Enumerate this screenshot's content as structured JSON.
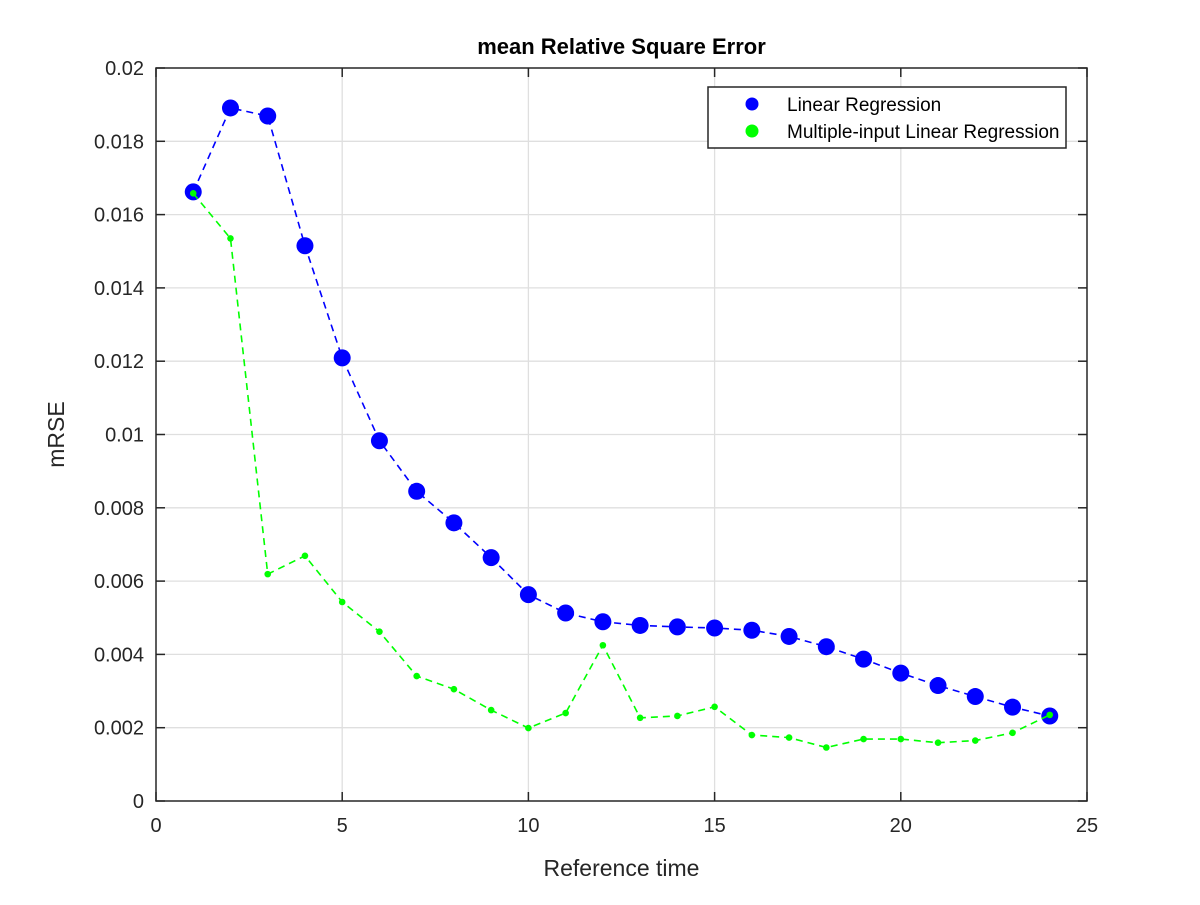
{
  "chart_data": {
    "type": "line",
    "title": "mean Relative Square Error",
    "xlabel": "Reference time",
    "ylabel": "mRSE",
    "xlim": [
      0,
      25
    ],
    "ylim": [
      0,
      0.02
    ],
    "xticks": [
      0,
      5,
      10,
      15,
      20,
      25
    ],
    "xtick_labels": [
      "0",
      "5",
      "10",
      "15",
      "20",
      "25"
    ],
    "yticks": [
      0,
      0.002,
      0.004,
      0.006,
      0.008,
      0.01,
      0.012,
      0.014,
      0.016,
      0.018,
      0.02
    ],
    "ytick_labels": [
      "0",
      "0.002",
      "0.004",
      "0.006",
      "0.008",
      "0.01",
      "0.012",
      "0.014",
      "0.016",
      "0.018",
      "0.02"
    ],
    "grid": true,
    "legend_position": "top-right",
    "x": [
      1,
      2,
      3,
      4,
      5,
      6,
      7,
      8,
      9,
      10,
      11,
      12,
      13,
      14,
      15,
      16,
      17,
      18,
      19,
      20,
      21,
      22,
      23,
      24
    ],
    "series": [
      {
        "name": "Linear Regression",
        "color": "#0000ff",
        "marker": "large-dot",
        "line": "dashed",
        "values": [
          0.01662,
          0.01891,
          0.01869,
          0.01515,
          0.01209,
          0.00983,
          0.00845,
          0.00759,
          0.00664,
          0.00563,
          0.00513,
          0.00489,
          0.00479,
          0.00475,
          0.00472,
          0.00466,
          0.00449,
          0.00421,
          0.00387,
          0.00349,
          0.00315,
          0.00285,
          0.00256,
          0.00232
        ]
      },
      {
        "name": "Multiple-input Linear Regression",
        "color": "#00ff00",
        "marker": "small-dot",
        "line": "dashed",
        "values": [
          0.01658,
          0.01535,
          0.00619,
          0.00669,
          0.00543,
          0.00462,
          0.00341,
          0.00305,
          0.00248,
          0.00199,
          0.0024,
          0.00425,
          0.00227,
          0.00232,
          0.00257,
          0.0018,
          0.00173,
          0.00146,
          0.00169,
          0.00169,
          0.00159,
          0.00165,
          0.00186,
          0.00235
        ]
      }
    ]
  }
}
